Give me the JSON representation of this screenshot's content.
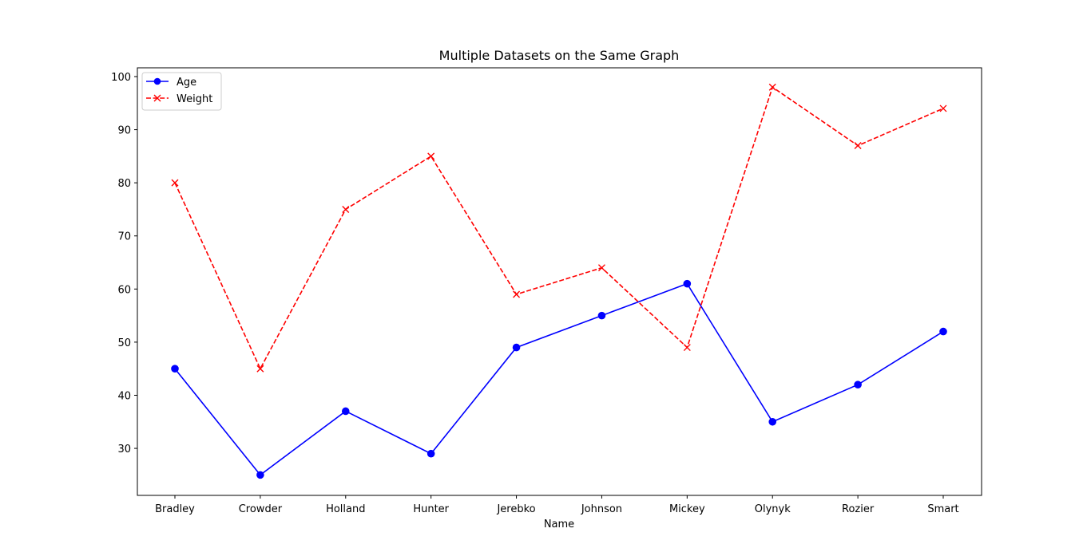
{
  "chart_data": {
    "type": "line",
    "title": "Multiple Datasets on the Same Graph",
    "xlabel": "Name",
    "ylabel": "",
    "categories": [
      "Bradley",
      "Crowder",
      "Holland",
      "Hunter",
      "Jerebko",
      "Johnson",
      "Mickey",
      "Olynyk",
      "Rozier",
      "Smart"
    ],
    "ylim": [
      21.15,
      101.65
    ],
    "yticks": [
      30,
      40,
      50,
      60,
      70,
      80,
      90,
      100
    ],
    "ytick_labels": [
      "30",
      "40",
      "50",
      "60",
      "70",
      "80",
      "90",
      "100"
    ],
    "grid": false,
    "legend_position": "upper-left",
    "series": [
      {
        "name": "Age",
        "values": [
          45,
          25,
          37,
          29,
          49,
          55,
          61,
          35,
          42,
          52
        ],
        "color": "#0000ff",
        "line_style": "solid",
        "marker": "circle"
      },
      {
        "name": "Weight",
        "values": [
          80,
          45,
          75,
          85,
          59,
          64,
          49,
          98,
          87,
          94
        ],
        "color": "#ff0000",
        "line_style": "dashed",
        "marker": "x"
      }
    ]
  }
}
